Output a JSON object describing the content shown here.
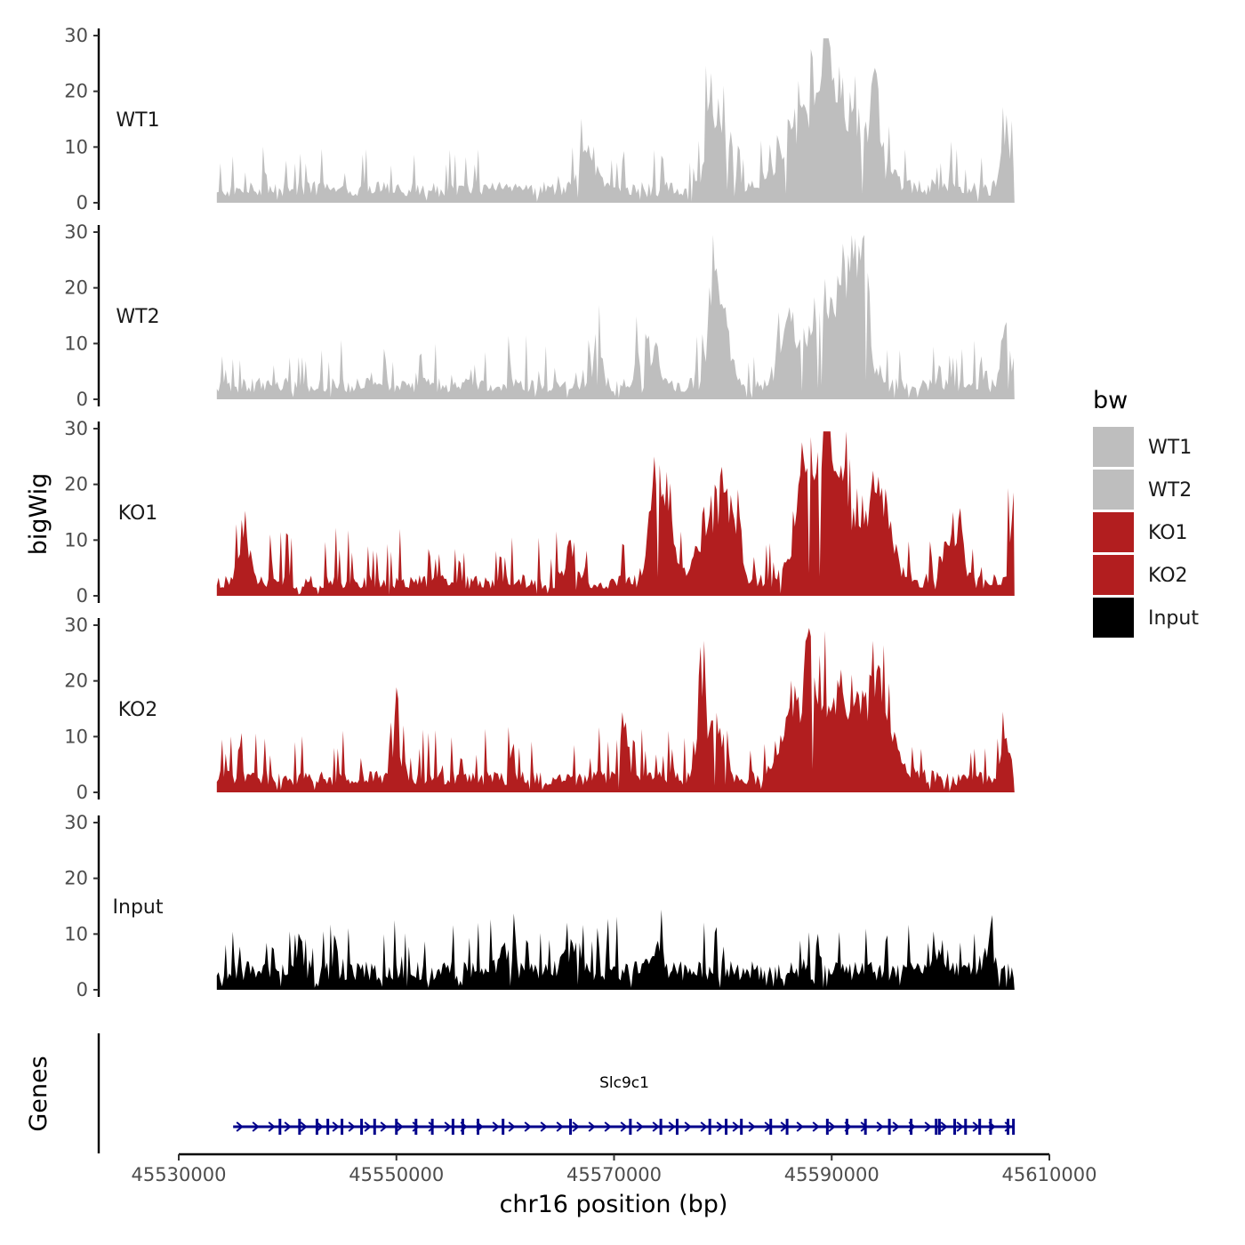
{
  "chart_data": {
    "type": "area",
    "title": "",
    "ylabel": "bigWig",
    "genes_label": "Genes",
    "xlabel": "chr16 position (bp)",
    "chromosome": "chr16",
    "xlim": [
      45530000,
      45610000
    ],
    "x_ticks": [
      45530000,
      45550000,
      45570000,
      45590000,
      45610000
    ],
    "x_tick_labels": [
      "45530000",
      "45550000",
      "45570000",
      "45590000",
      "45610000"
    ],
    "ylim": [
      0,
      30
    ],
    "y_ticks": [
      0,
      10,
      20,
      30
    ],
    "y_tick_labels": [
      "0",
      "10",
      "20",
      "30"
    ],
    "signal_range": [
      45533500,
      45606800
    ],
    "legend": {
      "title": "bw",
      "position": "right"
    },
    "series": [
      {
        "name": "WT1",
        "color": "#BEBEBE",
        "baseline": 3,
        "noise": 3.5,
        "seed": 11,
        "peaks": [
          [
            45567500,
            9,
            700
          ],
          [
            45578800,
            23,
            350
          ],
          [
            45580000,
            15,
            700
          ],
          [
            45588000,
            10,
            2200
          ],
          [
            45589500,
            26,
            250
          ],
          [
            45591000,
            14,
            2500
          ],
          [
            45594000,
            20,
            300
          ],
          [
            45606000,
            12,
            400
          ]
        ]
      },
      {
        "name": "WT2",
        "color": "#BEBEBE",
        "baseline": 3,
        "noise": 3.5,
        "seed": 23,
        "peaks": [
          [
            45568500,
            14,
            300
          ],
          [
            45573000,
            9,
            700
          ],
          [
            45579000,
            17,
            450
          ],
          [
            45580000,
            12,
            700
          ],
          [
            45586000,
            10,
            800
          ],
          [
            45589500,
            16,
            1600
          ],
          [
            45592000,
            18,
            1000
          ],
          [
            45593000,
            18,
            400
          ],
          [
            45606000,
            10,
            400
          ]
        ]
      },
      {
        "name": "KO1",
        "color": "#B21E1F",
        "baseline": 3,
        "noise": 4,
        "seed": 37,
        "peaks": [
          [
            45536000,
            8,
            500
          ],
          [
            45566000,
            8,
            400
          ],
          [
            45573500,
            12,
            500
          ],
          [
            45574500,
            14,
            800
          ],
          [
            45578800,
            12,
            1200
          ],
          [
            45580500,
            11,
            800
          ],
          [
            45588000,
            17,
            900
          ],
          [
            45589700,
            28,
            200
          ],
          [
            45591000,
            17,
            2500
          ],
          [
            45594500,
            11,
            800
          ],
          [
            45601000,
            7,
            900
          ],
          [
            45606600,
            18,
            250
          ]
        ]
      },
      {
        "name": "KO2",
        "color": "#B21E1F",
        "baseline": 3,
        "noise": 4,
        "seed": 51,
        "peaks": [
          [
            45550000,
            11,
            250
          ],
          [
            45571000,
            12,
            300
          ],
          [
            45578000,
            18,
            400
          ],
          [
            45579500,
            10,
            700
          ],
          [
            45586500,
            12,
            900
          ],
          [
            45588000,
            22,
            300
          ],
          [
            45591000,
            17,
            2800
          ],
          [
            45594500,
            12,
            1000
          ],
          [
            45606000,
            7,
            400
          ]
        ]
      },
      {
        "name": "Input",
        "color": "#000000",
        "baseline": 4,
        "noise": 4,
        "seed": 67,
        "peaks": [
          [
            45541000,
            6,
            400
          ],
          [
            45560000,
            5,
            500
          ],
          [
            45566000,
            4,
            600
          ],
          [
            45574000,
            4,
            500
          ],
          [
            45600000,
            5,
            500
          ],
          [
            45604500,
            5,
            500
          ]
        ]
      }
    ],
    "gene": {
      "name": "Slc9c1",
      "start": 45535000,
      "end": 45606800,
      "strand": "+",
      "color": "#00008B",
      "exons": [
        45539300,
        45541100,
        45542700,
        45543700,
        45545000,
        45546800,
        45548000,
        45550000,
        45551800,
        45553300,
        45555200,
        45556100,
        45557500,
        45559800,
        45566000,
        45571500,
        45574300,
        45575800,
        45578800,
        45580300,
        45581700,
        45584400,
        45585900,
        45589600,
        45591400,
        45593100,
        45595300,
        45597300,
        45599600,
        45599900,
        45601300,
        45602300,
        45603600,
        45604600,
        45606200,
        45606700
      ]
    }
  }
}
